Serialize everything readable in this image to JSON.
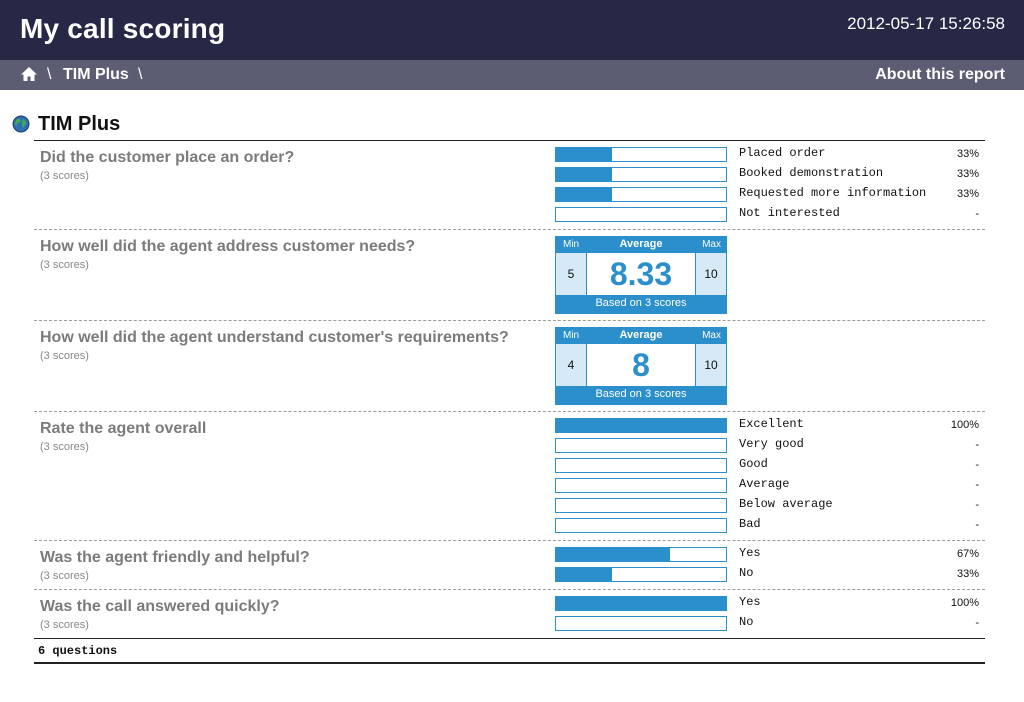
{
  "header": {
    "title": "My call scoring",
    "timestamp": "2012-05-17 15:26:58"
  },
  "breadcrumb": {
    "home_icon": "home-icon",
    "separator": "\\",
    "item": "TIM Plus",
    "about": "About this report"
  },
  "section": {
    "icon": "globe-icon",
    "title": "TIM Plus"
  },
  "questions": [
    {
      "text": "Did the customer place an order?",
      "sub": "(3 scores)",
      "options": [
        {
          "label": "Placed order",
          "pct": "33%",
          "fraction": 0.33
        },
        {
          "label": "Booked demonstration",
          "pct": "33%",
          "fraction": 0.33
        },
        {
          "label": "Requested more information",
          "pct": "33%",
          "fraction": 0.33
        },
        {
          "label": "Not interested",
          "pct": "-",
          "fraction": 0
        }
      ]
    },
    {
      "text": "How well did the agent address customer needs?",
      "sub": "(3 scores)",
      "summary": {
        "min_label": "Min",
        "avg_label": "Average",
        "max_label": "Max",
        "min": "5",
        "avg": "8.33",
        "max": "10",
        "based": "Based on 3 scores"
      }
    },
    {
      "text": "How well did the agent understand customer's requirements?",
      "sub": "(3 scores)",
      "summary": {
        "min_label": "Min",
        "avg_label": "Average",
        "max_label": "Max",
        "min": "4",
        "avg": "8",
        "max": "10",
        "based": "Based on 3 scores"
      }
    },
    {
      "text": "Rate the agent overall",
      "sub": "(3 scores)",
      "options": [
        {
          "label": "Excellent",
          "pct": "100%",
          "fraction": 1
        },
        {
          "label": "Very good",
          "pct": "-",
          "fraction": 0
        },
        {
          "label": "Good",
          "pct": "-",
          "fraction": 0
        },
        {
          "label": "Average",
          "pct": "-",
          "fraction": 0
        },
        {
          "label": "Below average",
          "pct": "-",
          "fraction": 0
        },
        {
          "label": "Bad",
          "pct": "-",
          "fraction": 0
        }
      ]
    },
    {
      "text": "Was the agent friendly and helpful?",
      "sub": "(3 scores)",
      "options": [
        {
          "label": "Yes",
          "pct": "67%",
          "fraction": 0.67
        },
        {
          "label": "No",
          "pct": "33%",
          "fraction": 0.33
        }
      ]
    },
    {
      "text": "Was the call answered quickly?",
      "sub": "(3 scores)",
      "options": [
        {
          "label": "Yes",
          "pct": "100%",
          "fraction": 1
        },
        {
          "label": "No",
          "pct": "-",
          "fraction": 0
        }
      ]
    }
  ],
  "footer": {
    "count": "6 questions"
  },
  "colors": {
    "header_bg": "#262845",
    "crumb_bg": "#5c5d72",
    "accent": "#2b8fcb",
    "question_text": "#7b7b7b"
  }
}
